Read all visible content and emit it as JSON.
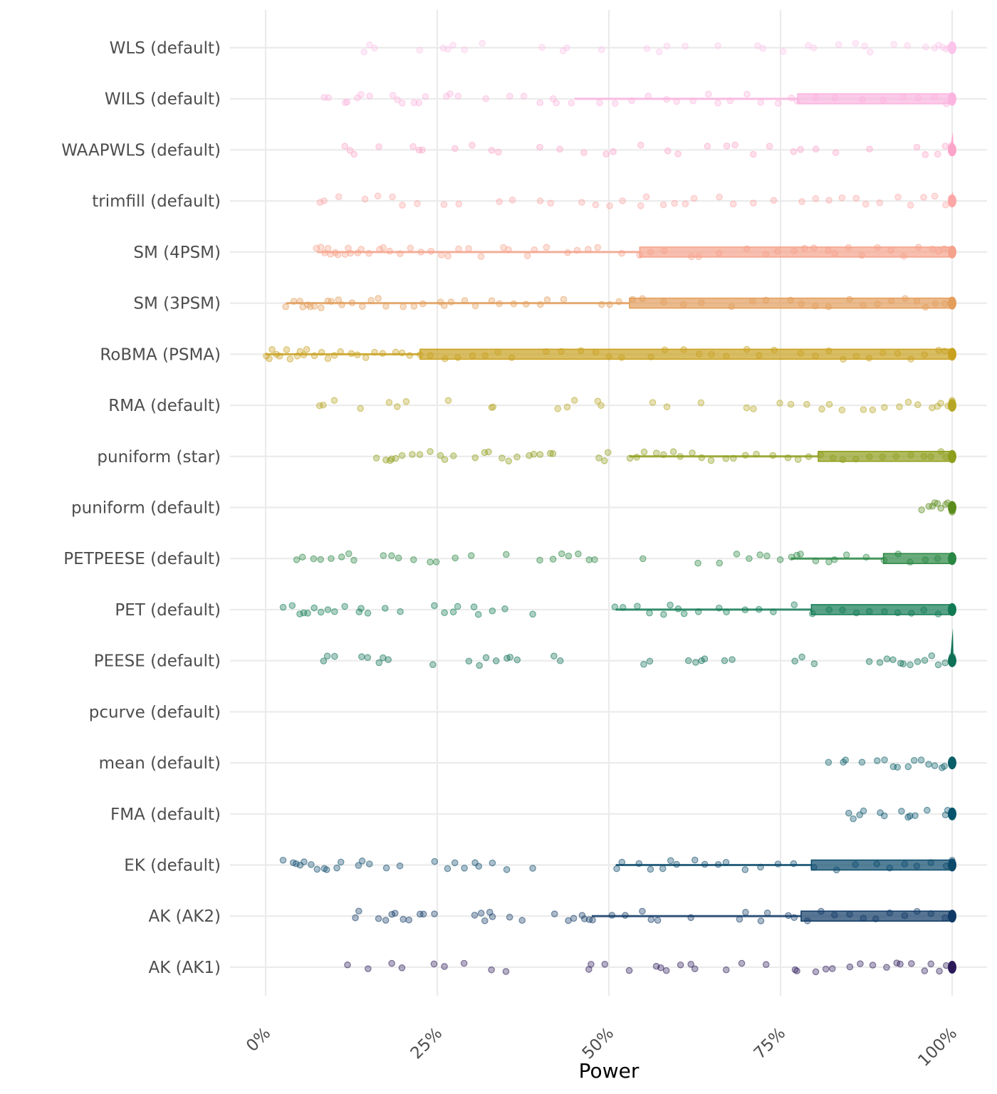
{
  "chart_data": {
    "type": "boxplot-strip",
    "title": "",
    "xlabel": "Power",
    "ylabel": "",
    "xlim": [
      0,
      100
    ],
    "x_unit": "%",
    "x_ticks": [
      0,
      25,
      50,
      75,
      100
    ],
    "x_tick_labels": [
      "0%",
      "25%",
      "50%",
      "75%",
      "100%"
    ],
    "grid": true,
    "legend": "none",
    "categories": [
      "WLS (default)",
      "WILS (default)",
      "WAAPWLS (default)",
      "trimfill (default)",
      "SM (4PSM)",
      "SM (3PSM)",
      "RoBMA (PSMA)",
      "RMA (default)",
      "puniform (star)",
      "puniform (default)",
      "PETPEESE (default)",
      "PET (default)",
      "PEESE (default)",
      "pcurve (default)",
      "mean (default)",
      "FMA (default)",
      "EK (default)",
      "AK (AK2)",
      "AK (AK1)"
    ],
    "series": [
      {
        "name": "WLS (default)",
        "color": "#fcc5eb",
        "box": {
          "whisker_low": 100,
          "q1": 100,
          "median": 100,
          "q3": 100,
          "max": 100
        },
        "points": [
          14.5,
          15.2,
          15.8,
          22.5,
          25.8,
          26.5,
          27.2,
          29,
          31.5,
          40.2,
          43.2,
          44,
          48.8,
          55.5,
          57.2,
          58.5,
          61,
          66,
          71.7,
          72.3,
          75.3,
          79.2,
          79.8,
          83.5,
          85.8,
          87.3,
          88,
          91.5,
          93.5,
          96.2,
          97.5,
          98,
          98.5,
          99,
          99.5,
          100,
          100,
          100
        ]
      },
      {
        "name": "WILS (default)",
        "color": "#fbb4df",
        "box": {
          "whisker_low": 45,
          "q1": 77.5,
          "median": 100,
          "q3": 100,
          "max": 100
        },
        "points": [
          8.5,
          9.2,
          11.5,
          12,
          13.5,
          14,
          15,
          18.5,
          19.2,
          20,
          21.5,
          22.2,
          23.2,
          26.5,
          27,
          28,
          32,
          35.5,
          37.5,
          40,
          42,
          42.5,
          44.5,
          48.8,
          51,
          53.3,
          55.8,
          58.5,
          60,
          62.2,
          64.5,
          66,
          67.8,
          70,
          72,
          74.5,
          76.5,
          77.5,
          80,
          83,
          86.8,
          90,
          92.8,
          95,
          97.5,
          99,
          100,
          100
        ]
      },
      {
        "name": "WAAPWLS (default)",
        "color": "#fba4c9",
        "box": {
          "whisker_low": 100,
          "q1": 100,
          "median": 100,
          "q3": 100,
          "max": 100
        },
        "points": [
          11.5,
          12.3,
          12.8,
          16.5,
          21.5,
          22.3,
          22.8,
          27.5,
          30,
          33,
          34,
          40,
          42.8,
          46.5,
          49.5,
          50.5,
          54.5,
          58.5,
          60,
          64.5,
          67.3,
          68.5,
          71,
          73.5,
          77,
          78,
          80,
          83,
          88,
          95,
          96,
          98,
          99,
          100,
          100
        ]
      },
      {
        "name": "trimfill (default)",
        "color": "#fca7a7",
        "box": {
          "whisker_low": 100,
          "q1": 100,
          "median": 100,
          "q3": 100,
          "max": 100
        },
        "points": [
          8,
          8.5,
          10.5,
          14.5,
          16.5,
          18.5,
          20,
          22,
          26,
          28,
          34,
          36,
          40,
          41.5,
          46,
          48,
          50,
          52,
          54.5,
          55.5,
          58,
          59.5,
          61,
          62.5,
          66,
          68,
          71,
          74,
          78,
          80,
          82,
          84,
          86,
          87.3,
          89.5,
          92,
          94,
          96,
          97.5,
          99,
          100,
          100
        ]
      },
      {
        "name": "SM (4PSM)",
        "color": "#f5a28b",
        "box": {
          "whisker_low": 7.5,
          "q1": 54.5,
          "median": 100,
          "q3": 100,
          "max": 100
        },
        "points": [
          7.5,
          8,
          8.5,
          9,
          9.5,
          10,
          10.5,
          11.5,
          12,
          12.5,
          13.5,
          14,
          15,
          16.5,
          17,
          18,
          19.5,
          21,
          22.5,
          24,
          25.5,
          26.5,
          28,
          29.5,
          31.5,
          34.5,
          35.5,
          38,
          39,
          41,
          44,
          45.5,
          47,
          48.5,
          52,
          54.5,
          56,
          58,
          62,
          63,
          66,
          70,
          73,
          74.5,
          77,
          78.5,
          80,
          82,
          83,
          85,
          87,
          89,
          91,
          93,
          95,
          97,
          98,
          99,
          100
        ]
      },
      {
        "name": "SM (3PSM)",
        "color": "#e39e5c",
        "box": {
          "whisker_low": 3,
          "q1": 53,
          "median": 100,
          "q3": 100,
          "max": 100
        },
        "points": [
          3,
          4,
          5,
          5.5,
          6,
          6.5,
          7,
          8,
          9,
          9.5,
          10.5,
          11,
          12.5,
          14,
          15.5,
          16.5,
          17.5,
          20,
          21.5,
          23,
          25.5,
          26,
          27,
          29,
          30.5,
          33,
          34,
          36,
          38,
          40,
          41,
          43.5,
          49,
          50,
          51.5,
          53.5,
          55,
          58,
          61,
          63.5,
          68,
          71,
          73,
          76.5,
          78,
          80,
          82,
          85,
          87,
          89,
          91,
          93,
          95,
          96,
          97.5,
          99,
          100
        ]
      },
      {
        "name": "RoBMA (PSMA)",
        "color": "#c9a11f",
        "box": {
          "whisker_low": 0,
          "q1": 22.5,
          "median": 100,
          "q3": 100,
          "max": 100
        },
        "points": [
          0,
          0.5,
          1,
          1.5,
          2,
          3,
          3.5,
          4.5,
          5,
          5.5,
          6,
          7,
          8,
          9,
          10,
          11,
          12.5,
          13.5,
          14.5,
          16,
          17,
          19,
          20,
          21,
          22.5,
          24,
          26,
          28,
          30,
          32,
          34,
          36,
          41,
          43,
          46,
          48,
          50,
          52,
          56,
          58,
          61,
          63,
          65,
          67,
          70,
          72,
          74,
          78,
          80,
          82,
          84,
          86,
          88,
          90,
          92,
          94,
          96,
          98,
          99,
          100
        ]
      },
      {
        "name": "RMA (default)",
        "color": "#b7a726",
        "box": {
          "whisker_low": 100,
          "q1": 100,
          "median": 100,
          "q3": 100,
          "max": 100
        },
        "points": [
          7.7,
          8.5,
          10,
          13.8,
          18,
          19.3,
          20.5,
          26.5,
          32.8,
          33,
          42.5,
          44,
          45,
          48.5,
          49,
          56.5,
          58.5,
          63.5,
          70,
          71,
          75,
          76.5,
          78.8,
          81,
          82,
          84,
          87,
          88.5,
          90,
          92.3,
          93.5,
          95,
          97,
          97.8,
          98.5,
          99.3,
          100,
          100
        ]
      },
      {
        "name": "puniform (star)",
        "color": "#8f9e1c",
        "box": {
          "whisker_low": 53,
          "q1": 80.5,
          "median": 100,
          "q3": 100,
          "max": 100
        },
        "points": [
          16,
          17.5,
          18,
          18.5,
          19,
          20,
          21.5,
          22.5,
          24,
          25.5,
          26,
          27.5,
          30.5,
          32,
          32.5,
          34.5,
          35.5,
          36.5,
          38.5,
          39,
          40,
          41.5,
          42,
          48.5,
          49.5,
          50,
          53,
          54,
          55,
          57,
          58,
          59.5,
          60.5,
          62,
          63.5,
          65,
          67,
          68,
          70,
          71.5,
          74,
          76,
          77.5,
          79,
          81,
          82.5,
          84,
          86,
          88,
          90,
          92,
          94,
          96,
          97,
          98.5,
          99,
          100
        ]
      },
      {
        "name": "puniform (default)",
        "color": "#5c8c1e",
        "box": {
          "whisker_low": 100,
          "q1": 100,
          "median": 100,
          "q3": 100,
          "max": 100
        },
        "points": [
          95.5,
          96.5,
          97,
          97.5,
          98,
          98.5,
          99,
          99.5,
          100,
          100,
          100
        ]
      },
      {
        "name": "PETPEESE (default)",
        "color": "#2a8743",
        "box": {
          "whisker_low": 76.5,
          "q1": 90,
          "median": 100,
          "q3": 100,
          "max": 100
        },
        "points": [
          4.5,
          5.5,
          7,
          8,
          9.5,
          11,
          12,
          13,
          17,
          18.5,
          19.5,
          21.5,
          24,
          25,
          27.5,
          30,
          35,
          40,
          42,
          43,
          44,
          45.5,
          47,
          48,
          55,
          63,
          66,
          68.5,
          70.5,
          72,
          73,
          75,
          76.5,
          77.5,
          78,
          80,
          82,
          83,
          84.5,
          87.5,
          90,
          92,
          94,
          96,
          98,
          100
        ]
      },
      {
        "name": "PET (default)",
        "color": "#117a54",
        "box": {
          "whisker_low": 51,
          "q1": 79.5,
          "median": 100,
          "q3": 100,
          "max": 100
        },
        "points": [
          2.5,
          4,
          5,
          5.5,
          6,
          7,
          8,
          9,
          10,
          11.5,
          13.5,
          14,
          15,
          17.5,
          19.5,
          24.5,
          26,
          27.5,
          28,
          30.5,
          31,
          33,
          35,
          39,
          51,
          52,
          54,
          56,
          58,
          59,
          60,
          61,
          63,
          66,
          67,
          70,
          72,
          74,
          77,
          79.5,
          82,
          84,
          86,
          88,
          90,
          92,
          94,
          96,
          98,
          100
        ]
      },
      {
        "name": "PEESE (default)",
        "color": "#0f7055",
        "box": {
          "whisker_low": 100,
          "q1": 100,
          "median": 100,
          "q3": 100,
          "max": 100
        },
        "points": [
          8.5,
          9,
          10,
          14,
          15,
          16.5,
          17,
          18,
          24.5,
          29.5,
          31,
          32,
          33.5,
          35,
          35.5,
          36.5,
          42,
          43,
          55,
          56,
          61.5,
          62.5,
          63.5,
          64,
          67,
          68,
          77,
          78,
          80,
          88,
          89.5,
          90.5,
          91.5,
          92.5,
          93,
          94,
          95,
          96,
          97,
          98,
          99,
          100
        ]
      },
      {
        "name": "pcurve (default)",
        "color": "#0f6a5c",
        "box": null,
        "points": []
      },
      {
        "name": "mean (default)",
        "color": "#0a5f67",
        "box": {
          "whisker_low": 100,
          "q1": 100,
          "median": 100,
          "q3": 100,
          "max": 100
        },
        "points": [
          82,
          84,
          84.5,
          87,
          89,
          90,
          91.5,
          92,
          93.5,
          94.5,
          95.5,
          96.5,
          97.5,
          98.5,
          99,
          100
        ]
      },
      {
        "name": "FMA (default)",
        "color": "#09546d",
        "box": {
          "whisker_low": 100,
          "q1": 100,
          "median": 100,
          "q3": 100,
          "max": 100
        },
        "points": [
          85,
          85.5,
          86.5,
          87,
          89.5,
          90,
          92.5,
          93.5,
          94,
          94.5,
          96.5,
          99,
          99.5,
          100,
          100
        ]
      },
      {
        "name": "EK (default)",
        "color": "#0c4a6c",
        "box": {
          "whisker_low": 51,
          "q1": 79.5,
          "median": 100,
          "q3": 100,
          "max": 100
        },
        "points": [
          2.5,
          4,
          4.5,
          5,
          5.5,
          6.5,
          7.5,
          8.5,
          9,
          10.5,
          11,
          13.5,
          14,
          15,
          17.5,
          19.5,
          24.5,
          26.5,
          27.5,
          29,
          30.5,
          31,
          33,
          35,
          39,
          51,
          52,
          54.5,
          56,
          58,
          59,
          60,
          62.5,
          64,
          66,
          67,
          70,
          72,
          74.5,
          77,
          80,
          83,
          86,
          89,
          91,
          93,
          95,
          97,
          99,
          100
        ]
      },
      {
        "name": "AK (AK2)",
        "color": "#103a66",
        "box": {
          "whisker_low": 47.5,
          "q1": 78,
          "median": 100,
          "q3": 100,
          "max": 100
        },
        "points": [
          13,
          13.5,
          16.5,
          17.5,
          18.5,
          19,
          20,
          21,
          22.5,
          23,
          24.5,
          30.5,
          31.5,
          32,
          32.5,
          33,
          35.5,
          37.5,
          42,
          44,
          45,
          46,
          46.5,
          47,
          47.5,
          50.5,
          52.5,
          55,
          56,
          57,
          62,
          69,
          70,
          72,
          73,
          76,
          77,
          79,
          81,
          83,
          85,
          87,
          89,
          91,
          93,
          95,
          97,
          99,
          100
        ]
      },
      {
        "name": "AK (AK1)",
        "color": "#2b1a5a",
        "box": {
          "whisker_low": 100,
          "q1": 100,
          "median": 100,
          "q3": 100,
          "max": 100
        },
        "points": [
          12,
          15,
          18.5,
          20,
          24.5,
          26,
          29,
          33,
          35,
          47,
          47.5,
          49.5,
          53,
          57,
          57.5,
          58.5,
          60.5,
          62,
          62.5,
          67,
          69.5,
          73,
          77,
          77.5,
          80,
          81.5,
          82.5,
          85,
          86.5,
          88.5,
          90.5,
          92,
          92.5,
          94,
          96,
          97,
          98,
          99,
          100
        ]
      }
    ]
  }
}
